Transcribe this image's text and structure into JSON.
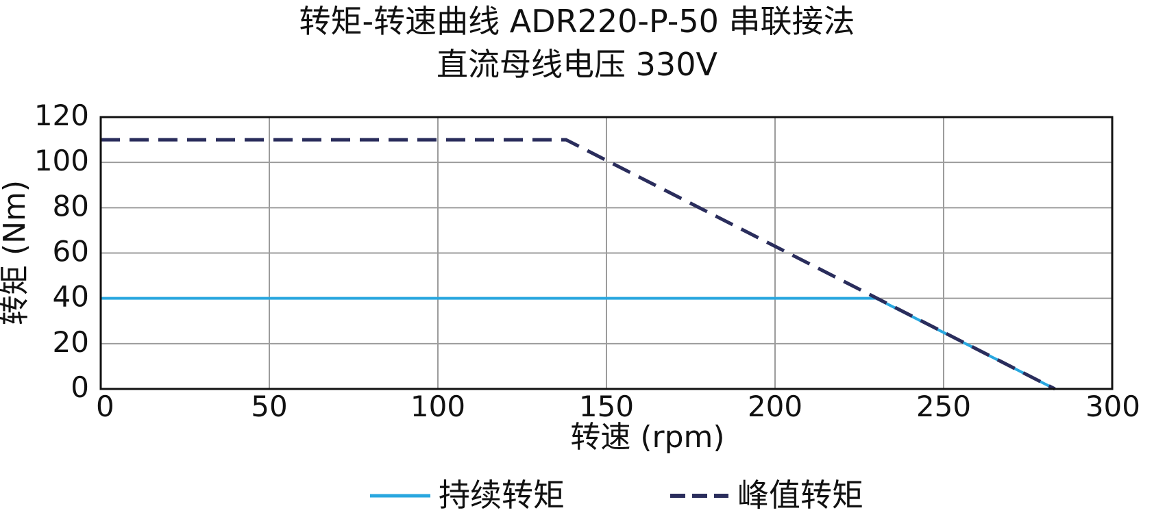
{
  "chart_data": {
    "type": "line",
    "title": "转矩-转速曲线 ADR220-P-50 串联接法",
    "subtitle": "直流母线电压 330V",
    "xlabel": "转速 (rpm)",
    "ylabel": "转矩 (Nm)",
    "xlim": [
      0,
      300
    ],
    "ylim": [
      0,
      120
    ],
    "x_ticks": [
      0,
      50,
      100,
      150,
      200,
      250,
      300
    ],
    "y_ticks": [
      0,
      20,
      40,
      60,
      80,
      100,
      120
    ],
    "grid": true,
    "legend_position": "bottom",
    "series": [
      {
        "name": "持续转矩",
        "color": "#29A7DF",
        "style": "solid",
        "points": [
          {
            "x": 0,
            "y": 40
          },
          {
            "x": 230,
            "y": 40
          },
          {
            "x": 283,
            "y": 0
          }
        ]
      },
      {
        "name": "峰值转矩",
        "color": "#2A2D5C",
        "style": "dashed",
        "points": [
          {
            "x": 0,
            "y": 110
          },
          {
            "x": 138,
            "y": 110
          },
          {
            "x": 283,
            "y": 0
          }
        ]
      }
    ]
  }
}
